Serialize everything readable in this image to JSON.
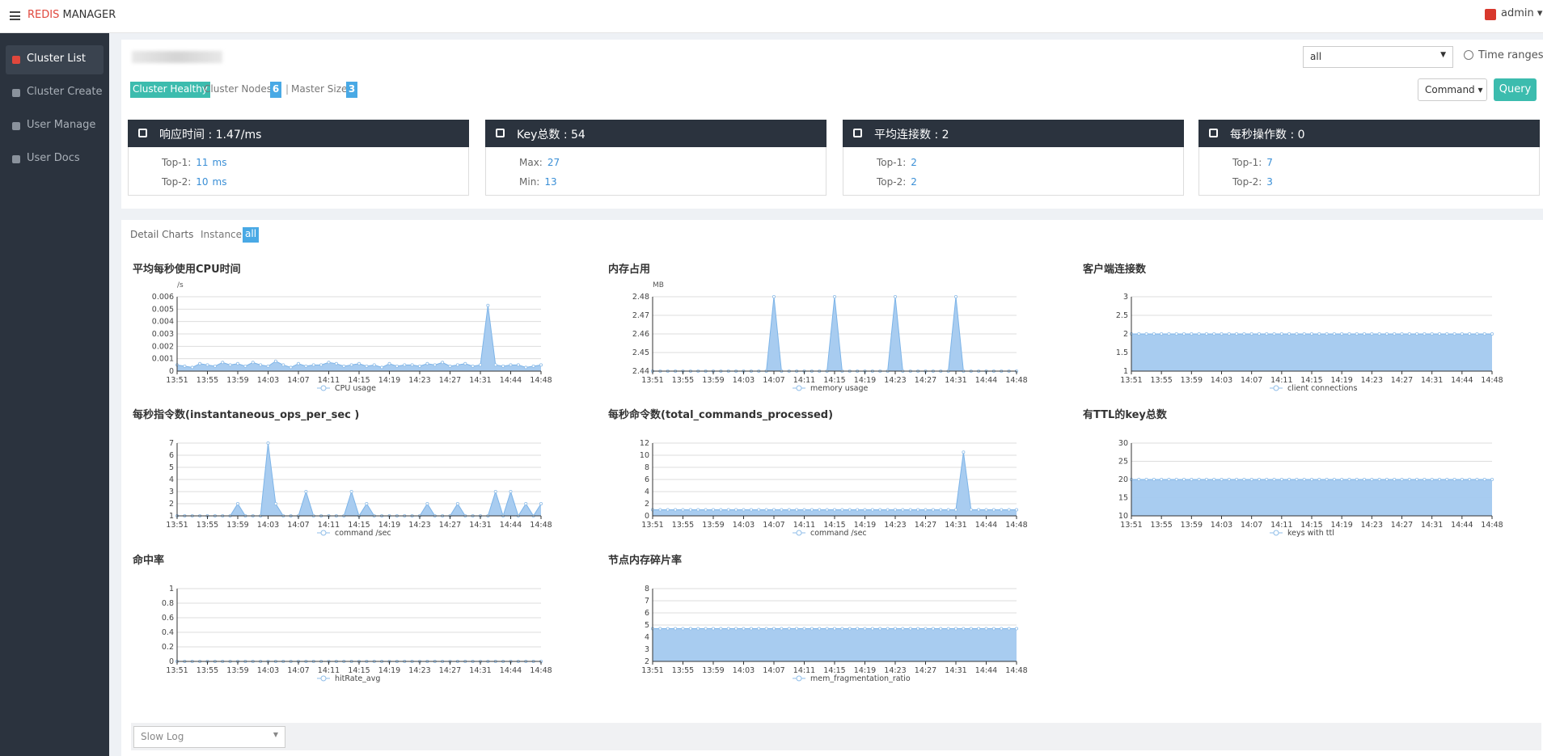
{
  "header": {
    "brand_red": "REDIS",
    "brand": "MANAGER",
    "user": "admin"
  },
  "sidebar": [
    "Cluster List",
    "Cluster Create",
    "User Manage",
    "User Docs"
  ],
  "toolbar": {
    "select": "all",
    "time_ranges": "Time ranges",
    "command": "Command",
    "query": "Query"
  },
  "status": {
    "healthy": "Cluster Healthy",
    "nodes_label": "Cluster Nodes:",
    "nodes": 6,
    "master_label": "Master Size:",
    "master": 3
  },
  "stats": [
    {
      "title": "响应时间 : 1.47/ms",
      "rows": [
        {
          "label": "Top-1:",
          "value": 11,
          "unit": "ms"
        },
        {
          "label": "Top-2:",
          "value": 10,
          "unit": "ms"
        }
      ]
    },
    {
      "title": "Key总数 : 54",
      "rows": [
        {
          "label": "Max:",
          "value": 27
        },
        {
          "label": "Min:",
          "value": 13
        }
      ]
    },
    {
      "title": "平均连接数 : 2",
      "rows": [
        {
          "label": "Top-1:",
          "value": 2
        },
        {
          "label": "Top-2:",
          "value": 2
        }
      ]
    },
    {
      "title": "每秒操作数 : 0",
      "rows": [
        {
          "label": "Top-1:",
          "value": 7
        },
        {
          "label": "Top-2:",
          "value": 3
        }
      ]
    }
  ],
  "detail": {
    "label": "Detail Charts",
    "instance_label": "Instance:",
    "instance": "all"
  },
  "charts": {
    "type": "area",
    "categories": [
      "13:51",
      null,
      null,
      null,
      "13:55",
      null,
      null,
      null,
      "13:59",
      null,
      null,
      null,
      "14:03",
      null,
      null,
      null,
      "14:07",
      null,
      null,
      null,
      "14:11",
      null,
      null,
      null,
      "14:15",
      null,
      null,
      null,
      "14:19",
      null,
      null,
      null,
      "14:23",
      null,
      null,
      null,
      "14:27",
      null,
      null,
      null,
      "14:31",
      null,
      null,
      null,
      "14:44",
      null,
      null,
      null,
      "14:48"
    ],
    "items": [
      {
        "title": "平均每秒使用CPU时间",
        "unit": "/s",
        "legend": "CPU usage",
        "ylim": [
          0,
          0.006
        ],
        "yticks": [
          0,
          0.001,
          0.002,
          0.003,
          0.004,
          0.005,
          0.006
        ],
        "values": [
          0.0005,
          0.0004,
          0.0003,
          0.0006,
          0.0005,
          0.0004,
          0.0007,
          0.0005,
          0.0006,
          0.0004,
          0.0007,
          0.0005,
          0.0004,
          0.0008,
          0.0005,
          0.0003,
          0.0006,
          0.0004,
          0.0005,
          0.0005,
          0.0007,
          0.0006,
          0.0004,
          0.0005,
          0.0006,
          0.0004,
          0.0005,
          0.0003,
          0.0006,
          0.0004,
          0.0005,
          0.0005,
          0.0004,
          0.0006,
          0.0005,
          0.0007,
          0.0004,
          0.0005,
          0.0006,
          0.0004,
          0.0005,
          0.0053,
          0.0005,
          0.0004,
          0.0005,
          0.0005,
          0.0003,
          0.0004,
          0.0005
        ]
      },
      {
        "title": "内存占用",
        "unit": "MB",
        "legend": "memory usage",
        "ylim": [
          2.44,
          2.48
        ],
        "yticks": [
          2.44,
          2.45,
          2.46,
          2.47,
          2.48
        ],
        "values": [
          2.44,
          2.44,
          2.44,
          2.44,
          2.44,
          2.44,
          2.44,
          2.44,
          2.44,
          2.44,
          2.44,
          2.44,
          2.44,
          2.44,
          2.44,
          2.44,
          2.48,
          2.44,
          2.44,
          2.44,
          2.44,
          2.44,
          2.44,
          2.44,
          2.48,
          2.44,
          2.44,
          2.44,
          2.44,
          2.44,
          2.44,
          2.44,
          2.48,
          2.44,
          2.44,
          2.44,
          2.44,
          2.44,
          2.44,
          2.44,
          2.48,
          2.44,
          2.44,
          2.44,
          2.44,
          2.44,
          2.44,
          2.44,
          2.44
        ]
      },
      {
        "title": "客户端连接数",
        "legend": "client connections",
        "ylim": [
          1,
          3
        ],
        "yticks": [
          1,
          1.5,
          2,
          2.5,
          3
        ],
        "values": [
          2,
          2,
          2,
          2,
          2,
          2,
          2,
          2,
          2,
          2,
          2,
          2,
          2,
          2,
          2,
          2,
          2,
          2,
          2,
          2,
          2,
          2,
          2,
          2,
          2,
          2,
          2,
          2,
          2,
          2,
          2,
          2,
          2,
          2,
          2,
          2,
          2,
          2,
          2,
          2,
          2,
          2,
          2,
          2,
          2,
          2,
          2,
          2,
          2
        ]
      },
      {
        "title": "每秒指令数(instantaneous_ops_per_sec )",
        "legend": "command /sec",
        "ylim": [
          1,
          7
        ],
        "yticks": [
          1,
          2,
          3,
          4,
          5,
          6,
          7
        ],
        "values": [
          1,
          1,
          1,
          1,
          1,
          1,
          1,
          1,
          2,
          1,
          1,
          1,
          7,
          2,
          1,
          1,
          1,
          3,
          1,
          1,
          1,
          1,
          1,
          3,
          1,
          2,
          1,
          1,
          1,
          1,
          1,
          1,
          1,
          2,
          1,
          1,
          1,
          2,
          1,
          1,
          1,
          1,
          3,
          1,
          3,
          1,
          2,
          1,
          2
        ]
      },
      {
        "title": "每秒命令数(total_commands_processed)",
        "legend": "command /sec",
        "ylim": [
          0,
          12
        ],
        "yticks": [
          0,
          2,
          4,
          6,
          8,
          10,
          12
        ],
        "values": [
          1,
          1,
          1,
          1,
          1,
          1,
          1,
          1,
          1,
          1,
          1,
          1,
          1,
          1,
          1,
          1,
          1,
          1,
          1,
          1,
          1,
          1,
          1,
          1,
          1,
          1,
          1,
          1,
          1,
          1,
          1,
          1,
          1,
          1,
          1,
          1,
          1,
          1,
          1,
          1,
          1,
          10.5,
          1,
          1,
          1,
          1,
          1,
          1,
          1
        ]
      },
      {
        "title": "有TTL的key总数",
        "legend": "keys with ttl",
        "ylim": [
          10,
          30
        ],
        "yticks": [
          10,
          15,
          20,
          25,
          30
        ],
        "values": [
          20,
          20,
          20,
          20,
          20,
          20,
          20,
          20,
          20,
          20,
          20,
          20,
          20,
          20,
          20,
          20,
          20,
          20,
          20,
          20,
          20,
          20,
          20,
          20,
          20,
          20,
          20,
          20,
          20,
          20,
          20,
          20,
          20,
          20,
          20,
          20,
          20,
          20,
          20,
          20,
          20,
          20,
          20,
          20,
          20,
          20,
          20,
          20,
          20
        ]
      },
      {
        "title": "命中率",
        "legend": "hitRate_avg",
        "ylim": [
          0,
          1
        ],
        "yticks": [
          0,
          0.2,
          0.4,
          0.6,
          0.8,
          1
        ],
        "values": [
          0,
          0,
          0,
          0,
          0,
          0,
          0,
          0,
          0,
          0,
          0,
          0,
          0,
          0,
          0,
          0,
          0,
          0,
          0,
          0,
          0,
          0,
          0,
          0,
          0,
          0,
          0,
          0,
          0,
          0,
          0,
          0,
          0,
          0,
          0,
          0,
          0,
          0,
          0,
          0,
          0,
          0,
          0,
          0,
          0,
          0,
          0,
          0,
          0
        ]
      },
      {
        "title": "节点内存碎片率",
        "legend": "mem_fragmentation_ratio",
        "ylim": [
          2,
          8
        ],
        "yticks": [
          2,
          3,
          4,
          5,
          6,
          7,
          8
        ],
        "values": [
          4.7,
          4.7,
          4.7,
          4.7,
          4.7,
          4.7,
          4.7,
          4.7,
          4.7,
          4.7,
          4.7,
          4.7,
          4.7,
          4.7,
          4.7,
          4.7,
          4.7,
          4.7,
          4.7,
          4.7,
          4.7,
          4.7,
          4.7,
          4.7,
          4.7,
          4.7,
          4.7,
          4.7,
          4.7,
          4.7,
          4.7,
          4.7,
          4.7,
          4.7,
          4.7,
          4.7,
          4.7,
          4.7,
          4.7,
          4.7,
          4.7,
          4.7,
          4.7,
          4.7,
          4.7,
          4.7,
          4.7,
          4.7,
          4.7
        ]
      }
    ]
  },
  "slow_log": "Slow Log"
}
